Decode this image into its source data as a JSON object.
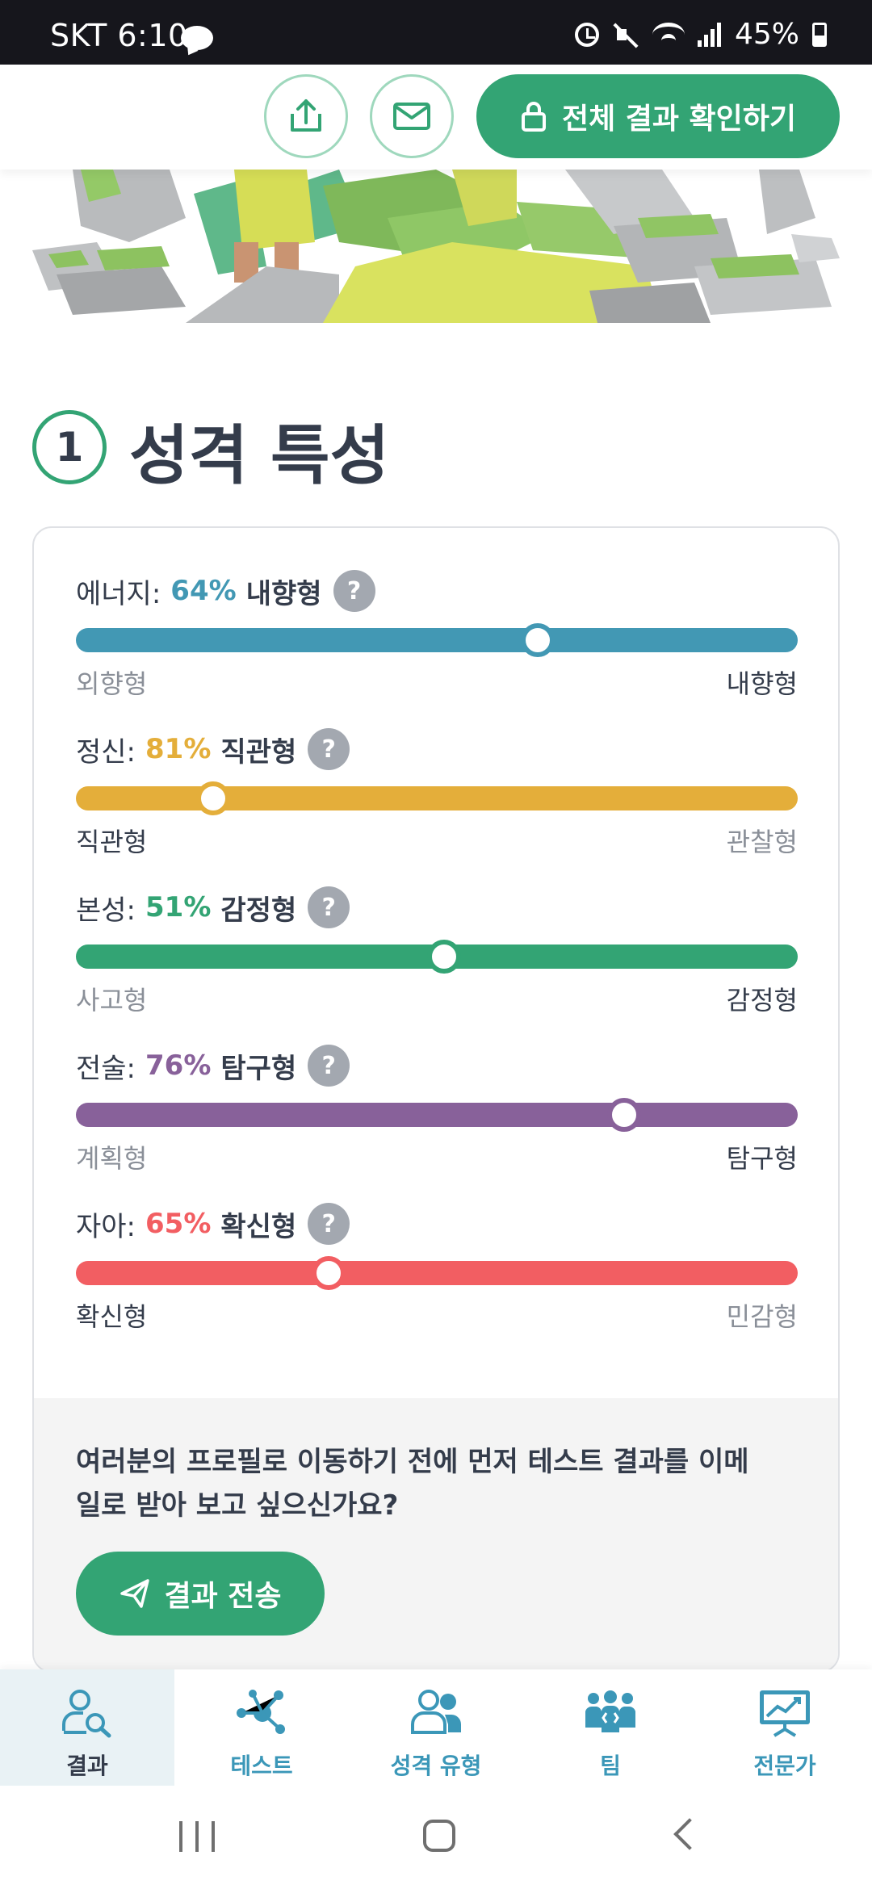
{
  "status_bar": {
    "carrier_time": "SKT 6:10",
    "battery": "45%"
  },
  "header": {
    "share_icon": "share-upload-icon",
    "mail_icon": "mail-icon",
    "cta_label": "전체 결과 확인하기",
    "cta_icon": "lock-icon"
  },
  "section": {
    "number": "1",
    "title": "성격 특성"
  },
  "traits": [
    {
      "name": "에너지:",
      "percent": "64%",
      "type": "내향형",
      "left": "외향형",
      "right": "내향형",
      "position": 64,
      "strong_side": "right",
      "color": "#4298b4"
    },
    {
      "name": "정신:",
      "percent": "81%",
      "type": "직관형",
      "left": "직관형",
      "right": "관찰형",
      "position": 19,
      "strong_side": "left",
      "color": "#e4ae3a"
    },
    {
      "name": "본성:",
      "percent": "51%",
      "type": "감정형",
      "left": "사고형",
      "right": "감정형",
      "position": 51,
      "strong_side": "right",
      "color": "#33a474"
    },
    {
      "name": "전술:",
      "percent": "76%",
      "type": "탐구형",
      "left": "계획형",
      "right": "탐구형",
      "position": 76,
      "strong_side": "right",
      "color": "#88619a"
    },
    {
      "name": "자아:",
      "percent": "65%",
      "type": "확신형",
      "left": "확신형",
      "right": "민감형",
      "position": 35,
      "strong_side": "left",
      "color": "#f25e62"
    }
  ],
  "help_glyph": "?",
  "email_prompt": {
    "text": "여러분의 프로필로 이동하기 전에 먼저 테스트 결과를 이메일로 받아 보고 싶으신가요?",
    "button_label": "결과 전송",
    "button_icon": "paper-plane-icon"
  },
  "tabs": [
    {
      "label": "결과",
      "icon": "results-search-icon",
      "active": true
    },
    {
      "label": "테스트",
      "icon": "network-test-icon",
      "active": false
    },
    {
      "label": "성격 유형",
      "icon": "personality-types-icon",
      "active": false
    },
    {
      "label": "팀",
      "icon": "team-icon",
      "active": false
    },
    {
      "label": "전문가",
      "icon": "professional-chart-icon",
      "active": false
    }
  ],
  "colors": {
    "brand_green": "#33a474",
    "tab_blue": "#3b97b8",
    "text_dark": "#343c4b"
  }
}
